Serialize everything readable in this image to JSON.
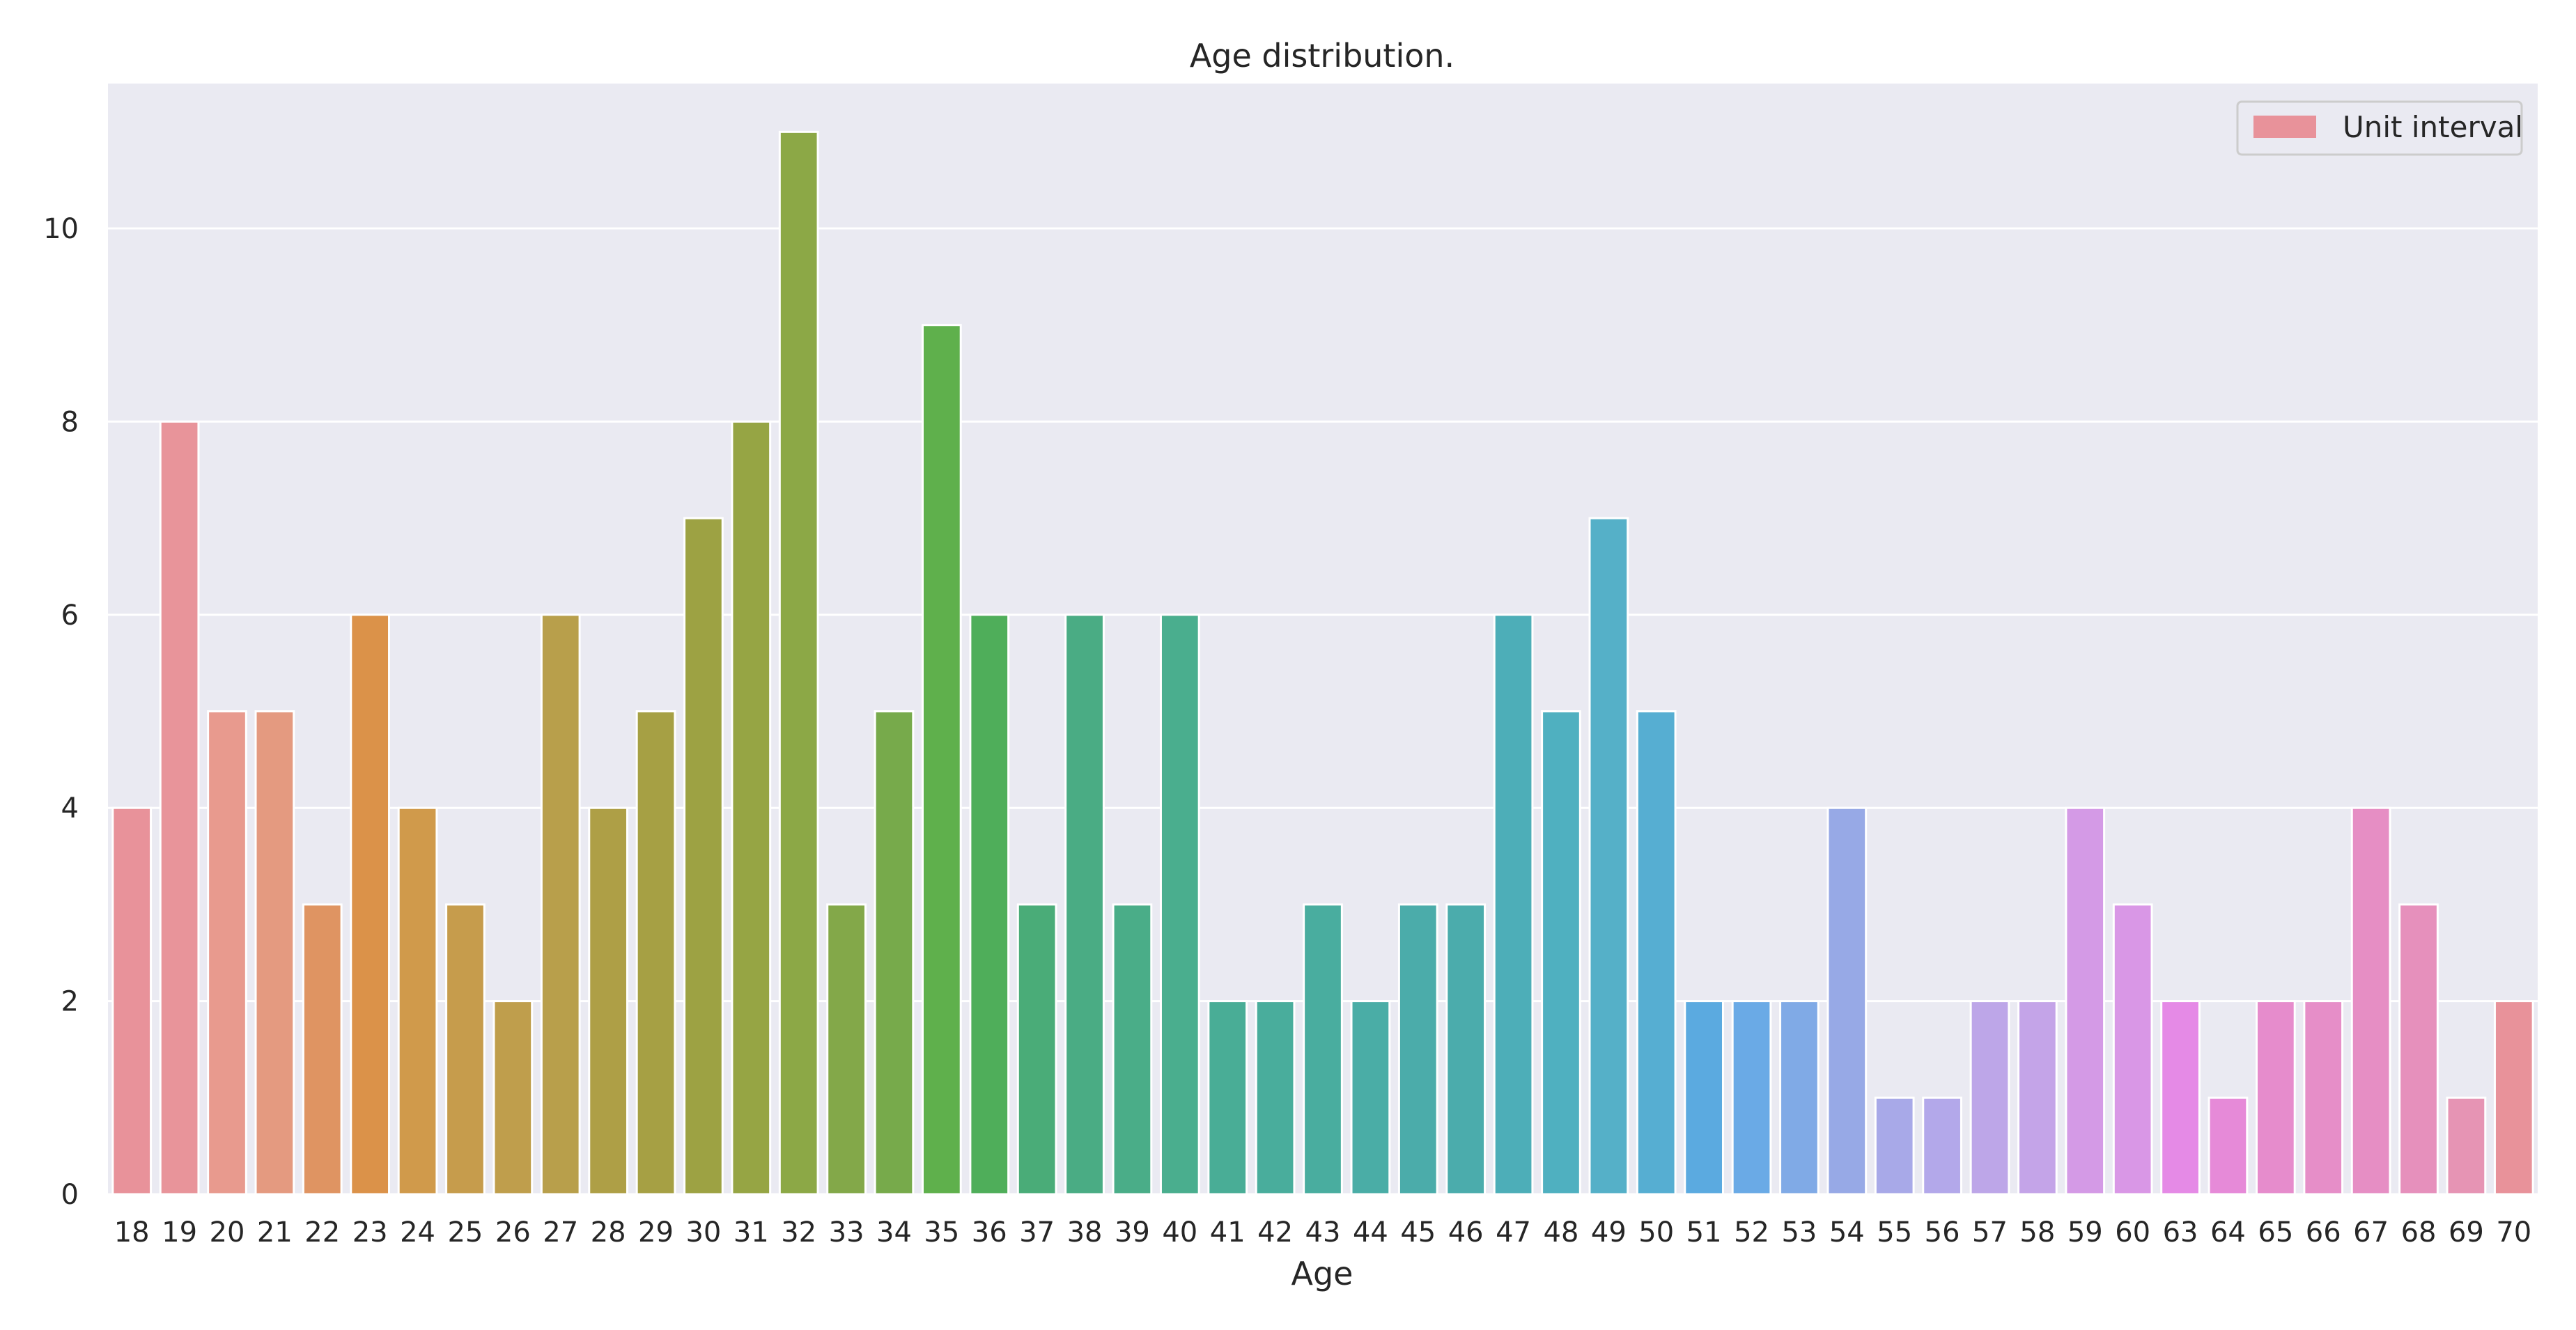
{
  "chart_data": {
    "type": "bar",
    "title": "Age distribution.",
    "xlabel": "Age",
    "ylabel": "",
    "ylim": [
      0,
      11.5
    ],
    "yticks": [
      0,
      2,
      4,
      6,
      8,
      10
    ],
    "grid": true,
    "legend": {
      "placement": "top-right",
      "entries": [
        "Unit interval"
      ]
    },
    "categories": [
      "18",
      "19",
      "20",
      "21",
      "22",
      "23",
      "24",
      "25",
      "26",
      "27",
      "28",
      "29",
      "30",
      "31",
      "32",
      "33",
      "34",
      "35",
      "36",
      "37",
      "38",
      "39",
      "40",
      "41",
      "42",
      "43",
      "44",
      "45",
      "46",
      "47",
      "48",
      "49",
      "50",
      "51",
      "52",
      "53",
      "54",
      "55",
      "56",
      "57",
      "58",
      "59",
      "60",
      "63",
      "64",
      "65",
      "66",
      "67",
      "68",
      "69",
      "70"
    ],
    "values": [
      4,
      8,
      5,
      5,
      3,
      6,
      4,
      3,
      2,
      6,
      4,
      5,
      7,
      8,
      11,
      3,
      5,
      9,
      6,
      3,
      6,
      3,
      6,
      2,
      2,
      3,
      2,
      3,
      3,
      6,
      5,
      7,
      5,
      2,
      2,
      2,
      4,
      1,
      1,
      2,
      2,
      4,
      3,
      2,
      1,
      2,
      2,
      4,
      3,
      1,
      2
    ],
    "colors": [
      "#e8929a",
      "#e8949a",
      "#e89a8e",
      "#e49a80",
      "#df9462",
      "#db9249",
      "#d09a4b",
      "#c69c4c",
      "#bf9e4c",
      "#b89f4b",
      "#ae9f46",
      "#a6a044",
      "#9da243",
      "#96a544",
      "#8ca846",
      "#83a849",
      "#77aa4b",
      "#5fb04c",
      "#4fae5a",
      "#4aac78",
      "#4aac84",
      "#4aad88",
      "#4aae8e",
      "#49ad96",
      "#49ad9c",
      "#49ad9f",
      "#4aada6",
      "#4bacaa",
      "#4bacac",
      "#4daeb8",
      "#4fb0c0",
      "#55b0c8",
      "#56aed2",
      "#5baae0",
      "#6aaae6",
      "#80aae6",
      "#97a9e6",
      "#a8a9e8",
      "#b3a8ea",
      "#bda6e8",
      "#c4a4e8",
      "#d49ae6",
      "#d997e6",
      "#e58ae6",
      "#e68ad8",
      "#e68ccc",
      "#e68ec8",
      "#e68ec4",
      "#e690bc",
      "#e694b4",
      "#e8929a"
    ]
  }
}
